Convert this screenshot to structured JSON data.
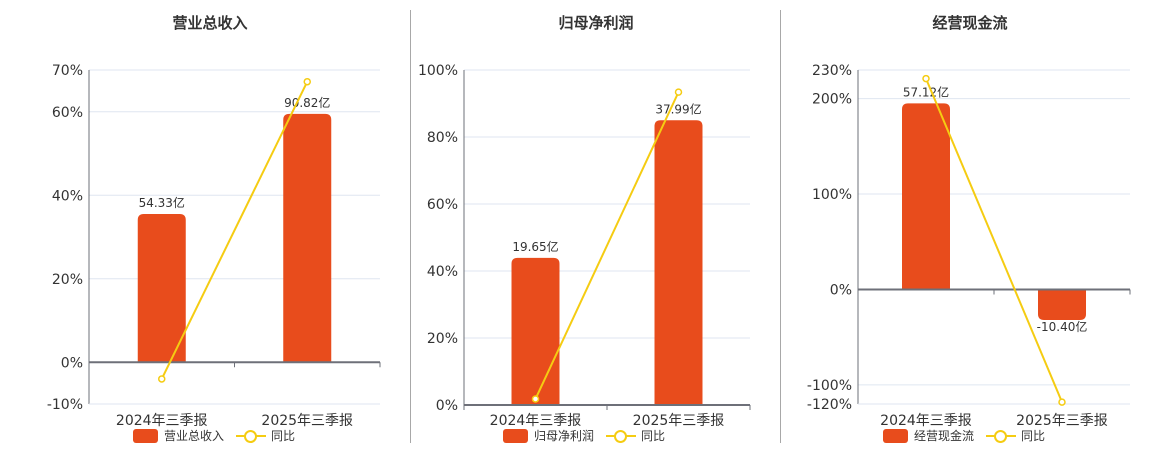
{
  "colors": {
    "bar": "#E84C1C",
    "line": "#F5CC12",
    "grid": "#dfe6f0",
    "axis": "#6e7079",
    "separator": "#a8a8a8"
  },
  "legend": {
    "line_label": "同比"
  },
  "chart_data": [
    {
      "type": "bar+line",
      "title": "营业总收入",
      "categories": [
        "2024年三季报",
        "2025年三季报"
      ],
      "series": [
        {
          "name": "营业总收入",
          "type": "bar",
          "values_pct_axis": [
            35.5,
            59.5
          ],
          "labels": [
            "54.33亿",
            "90.82亿"
          ]
        },
        {
          "name": "同比",
          "type": "line",
          "values": [
            -4.0,
            67.2
          ]
        }
      ],
      "ylim": [
        -10,
        70
      ],
      "yticks": [
        70,
        60,
        40,
        20,
        0,
        -10
      ],
      "ytick_labels": [
        "70%",
        "60%",
        "40%",
        "20%",
        "0%",
        "-10%"
      ],
      "legend_position": "bottom"
    },
    {
      "type": "bar+line",
      "title": "归母净利润",
      "categories": [
        "2024年三季报",
        "2025年三季报"
      ],
      "series": [
        {
          "name": "归母净利润",
          "type": "bar",
          "values_pct_axis": [
            43.9,
            85.0
          ],
          "labels": [
            "19.65亿",
            "37.99亿"
          ]
        },
        {
          "name": "同比",
          "type": "line",
          "values": [
            1.8,
            93.4
          ]
        }
      ],
      "ylim": [
        0,
        100
      ],
      "yticks": [
        100,
        80,
        60,
        40,
        20,
        0
      ],
      "ytick_labels": [
        "100%",
        "80%",
        "60%",
        "40%",
        "20%",
        "0%"
      ],
      "legend_position": "bottom"
    },
    {
      "type": "bar+line",
      "title": "经营现金流",
      "categories": [
        "2024年三季报",
        "2025年三季报"
      ],
      "series": [
        {
          "name": "经营现金流",
          "type": "bar",
          "values_pct_axis": [
            195,
            -32
          ],
          "labels": [
            "57.12亿",
            "-10.40亿"
          ]
        },
        {
          "name": "同比",
          "type": "line",
          "values": [
            221,
            -118
          ]
        }
      ],
      "ylim": [
        -120,
        230
      ],
      "yticks": [
        230,
        200,
        100,
        0,
        -100,
        -120
      ],
      "ytick_labels": [
        "230%",
        "200%",
        "100%",
        "0%",
        "-100%",
        "-120%"
      ],
      "legend_position": "bottom"
    }
  ]
}
